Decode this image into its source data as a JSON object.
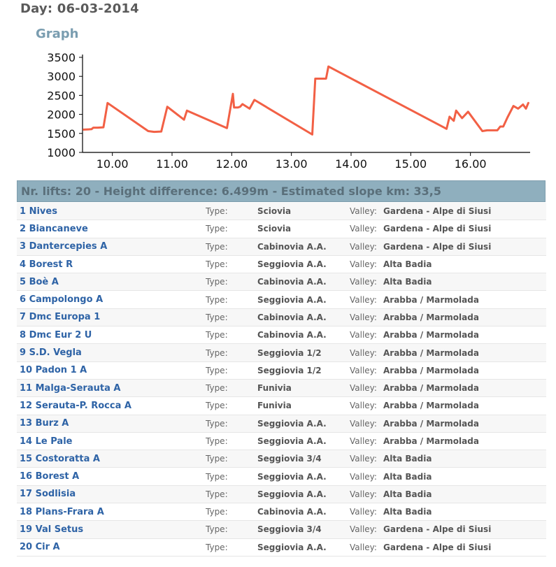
{
  "header": {
    "day_title": "Day: 06-03-2014",
    "graph_title": "Graph"
  },
  "chart_data": {
    "type": "line",
    "title": "",
    "xlabel": "",
    "ylabel": "",
    "xlim": [
      9.5,
      17.0
    ],
    "ylim": [
      1000,
      3500
    ],
    "y_ticks": [
      1000,
      1500,
      2000,
      2500,
      3000,
      3500
    ],
    "x_ticks": [
      10,
      11,
      12,
      13,
      14,
      15,
      16
    ],
    "x_tick_labels": [
      "10.00",
      "11.00",
      "12.00",
      "13.00",
      "14.00",
      "15.00",
      "16.00"
    ],
    "line_color": "#f26045",
    "series": [
      {
        "x": [
          9.52,
          9.65,
          9.68,
          9.75,
          9.85,
          9.92,
          10.6,
          10.7,
          10.82,
          10.92,
          11.2,
          11.25,
          11.92,
          12.02,
          12.04,
          12.1,
          12.14,
          12.18,
          12.3,
          12.38,
          13.35,
          13.4,
          13.48,
          13.55,
          13.58,
          13.62,
          15.6,
          15.65,
          15.72,
          15.76,
          15.86,
          15.96,
          16.2,
          16.28,
          16.45,
          16.5,
          16.55,
          16.62,
          16.72,
          16.8,
          16.88,
          16.93,
          16.97
        ],
        "y": [
          1600,
          1610,
          1650,
          1650,
          1660,
          2300,
          1560,
          1540,
          1550,
          2200,
          1860,
          2100,
          1640,
          2540,
          2180,
          2180,
          2200,
          2270,
          2150,
          2380,
          1470,
          2940,
          2940,
          2940,
          2940,
          3260,
          1620,
          1940,
          1830,
          2100,
          1900,
          2070,
          1560,
          1580,
          1580,
          1680,
          1680,
          1920,
          2220,
          2150,
          2260,
          2150,
          2300
        ]
      }
    ]
  },
  "summary": "Nr. lifts: 20 - Height difference: 6.499m - Estimated slope km: 33,5",
  "labels": {
    "type": "Type:",
    "valley": "Valley:"
  },
  "lifts": [
    {
      "name": "1 Nives",
      "type": "Sciovia",
      "valley": "Gardena - Alpe di Siusi"
    },
    {
      "name": "2 Biancaneve",
      "type": "Sciovia",
      "valley": "Gardena - Alpe di Siusi"
    },
    {
      "name": "3 Dantercepies A",
      "type": "Cabinovia A.A.",
      "valley": "Gardena - Alpe di Siusi"
    },
    {
      "name": "4 Borest R",
      "type": "Seggiovia A.A.",
      "valley": "Alta Badia"
    },
    {
      "name": "5 Boè A",
      "type": "Cabinovia A.A.",
      "valley": "Alta Badia"
    },
    {
      "name": "6 Campolongo A",
      "type": "Seggiovia A.A.",
      "valley": "Arabba / Marmolada"
    },
    {
      "name": "7 Dmc Europa 1",
      "type": "Cabinovia A.A.",
      "valley": "Arabba / Marmolada"
    },
    {
      "name": "8 Dmc Eur 2 U",
      "type": "Cabinovia A.A.",
      "valley": "Arabba / Marmolada"
    },
    {
      "name": "9 S.D. Vegla",
      "type": "Seggiovia 1/2",
      "valley": "Arabba / Marmolada"
    },
    {
      "name": "10 Padon 1 A",
      "type": "Seggiovia 1/2",
      "valley": "Arabba / Marmolada"
    },
    {
      "name": "11 Malga-Serauta A",
      "type": "Funivia",
      "valley": "Arabba / Marmolada"
    },
    {
      "name": "12 Serauta-P. Rocca A",
      "type": "Funivia",
      "valley": "Arabba / Marmolada"
    },
    {
      "name": "13 Burz A",
      "type": "Seggiovia A.A.",
      "valley": "Arabba / Marmolada"
    },
    {
      "name": "14 Le Pale",
      "type": "Seggiovia A.A.",
      "valley": "Arabba / Marmolada"
    },
    {
      "name": "15 Costoratta A",
      "type": "Seggiovia 3/4",
      "valley": "Alta Badia"
    },
    {
      "name": "16 Borest A",
      "type": "Seggiovia A.A.",
      "valley": "Alta Badia"
    },
    {
      "name": "17 Sodlisia",
      "type": "Seggiovia A.A.",
      "valley": "Alta Badia"
    },
    {
      "name": "18 Plans-Frara A",
      "type": "Cabinovia A.A.",
      "valley": "Alta Badia"
    },
    {
      "name": "19 Val Setus",
      "type": "Seggiovia 3/4",
      "valley": "Gardena - Alpe di Siusi"
    },
    {
      "name": "20 Cir A",
      "type": "Seggiovia A.A.",
      "valley": "Gardena - Alpe di Siusi"
    }
  ]
}
